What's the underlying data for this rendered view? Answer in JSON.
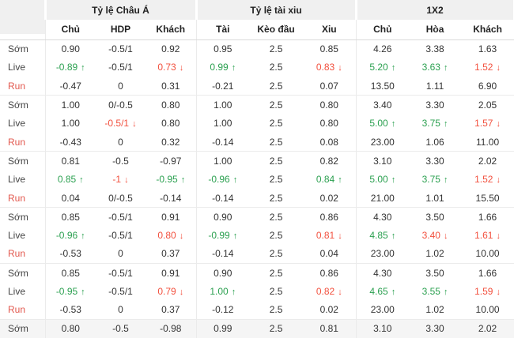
{
  "colors": {
    "green": "#2ba050",
    "red": "#f2503e",
    "run_label": "#e2574d",
    "header_bg": "#f0f0f0",
    "row_alt_bg": "#f5f5f5",
    "border": "#ebebeb"
  },
  "header": {
    "groups": [
      {
        "label": "Tỷ lệ Châu Á"
      },
      {
        "label": "Tỷ lệ tài xiu"
      },
      {
        "label": "1X2"
      }
    ],
    "columns": [
      "Chủ",
      "HDP",
      "Khách",
      "Tài",
      "Kèo đầu",
      "Xiu",
      "Chủ",
      "Hòa",
      "Khách"
    ]
  },
  "rows": [
    {
      "label": "Sớm",
      "kind": "som",
      "cells": [
        "0.90",
        "-0.5/1",
        "0.92",
        "0.95",
        "2.5",
        "0.85",
        "4.26",
        "3.38",
        "1.63"
      ]
    },
    {
      "label": "Live",
      "kind": "live",
      "cells": [
        {
          "v": "-0.89",
          "c": "g",
          "t": "u"
        },
        "-0.5/1",
        {
          "v": "0.73",
          "c": "r",
          "t": "d"
        },
        {
          "v": "0.99",
          "c": "g",
          "t": "u"
        },
        "2.5",
        {
          "v": "0.83",
          "c": "r",
          "t": "d"
        },
        {
          "v": "5.20",
          "c": "g",
          "t": "u"
        },
        {
          "v": "3.63",
          "c": "g",
          "t": "u"
        },
        {
          "v": "1.52",
          "c": "r",
          "t": "d"
        }
      ]
    },
    {
      "label": "Run",
      "kind": "run",
      "group_end": true,
      "cells": [
        "-0.47",
        "0",
        "0.31",
        "-0.21",
        "2.5",
        "0.07",
        "13.50",
        "1.11",
        "6.90"
      ]
    },
    {
      "label": "Sớm",
      "kind": "som",
      "cells": [
        "1.00",
        "0/-0.5",
        "0.80",
        "1.00",
        "2.5",
        "0.80",
        "3.40",
        "3.30",
        "2.05"
      ]
    },
    {
      "label": "Live",
      "kind": "live",
      "cells": [
        "1.00",
        {
          "v": "-0.5/1",
          "c": "r",
          "t": "d"
        },
        "0.80",
        "1.00",
        "2.5",
        "0.80",
        {
          "v": "5.00",
          "c": "g",
          "t": "u"
        },
        {
          "v": "3.75",
          "c": "g",
          "t": "u"
        },
        {
          "v": "1.57",
          "c": "r",
          "t": "d"
        }
      ]
    },
    {
      "label": "Run",
      "kind": "run",
      "group_end": true,
      "cells": [
        "-0.43",
        "0",
        "0.32",
        "-0.14",
        "2.5",
        "0.08",
        "23.00",
        "1.06",
        "11.00"
      ]
    },
    {
      "label": "Sớm",
      "kind": "som",
      "cells": [
        "0.81",
        "-0.5",
        "-0.97",
        "1.00",
        "2.5",
        "0.82",
        "3.10",
        "3.30",
        "2.02"
      ]
    },
    {
      "label": "Live",
      "kind": "live",
      "cells": [
        {
          "v": "0.85",
          "c": "g",
          "t": "u"
        },
        {
          "v": "-1",
          "c": "r",
          "t": "d"
        },
        {
          "v": "-0.95",
          "c": "g",
          "t": "u"
        },
        {
          "v": "-0.96",
          "c": "g",
          "t": "u"
        },
        "2.5",
        {
          "v": "0.84",
          "c": "g",
          "t": "u"
        },
        {
          "v": "5.00",
          "c": "g",
          "t": "u"
        },
        {
          "v": "3.75",
          "c": "g",
          "t": "u"
        },
        {
          "v": "1.52",
          "c": "r",
          "t": "d"
        }
      ]
    },
    {
      "label": "Run",
      "kind": "run",
      "group_end": true,
      "cells": [
        "0.04",
        "0/-0.5",
        "-0.14",
        "-0.14",
        "2.5",
        "0.02",
        "21.00",
        "1.01",
        "15.50"
      ]
    },
    {
      "label": "Sớm",
      "kind": "som",
      "cells": [
        "0.85",
        "-0.5/1",
        "0.91",
        "0.90",
        "2.5",
        "0.86",
        "4.30",
        "3.50",
        "1.66"
      ]
    },
    {
      "label": "Live",
      "kind": "live",
      "cells": [
        {
          "v": "-0.96",
          "c": "g",
          "t": "u"
        },
        "-0.5/1",
        {
          "v": "0.80",
          "c": "r",
          "t": "d"
        },
        {
          "v": "-0.99",
          "c": "g",
          "t": "u"
        },
        "2.5",
        {
          "v": "0.81",
          "c": "r",
          "t": "d"
        },
        {
          "v": "4.85",
          "c": "g",
          "t": "u"
        },
        {
          "v": "3.40",
          "c": "r",
          "t": "d"
        },
        {
          "v": "1.61",
          "c": "r",
          "t": "d"
        }
      ]
    },
    {
      "label": "Run",
      "kind": "run",
      "group_end": true,
      "cells": [
        "-0.53",
        "0",
        "0.37",
        "-0.14",
        "2.5",
        "0.04",
        "23.00",
        "1.02",
        "10.00"
      ]
    },
    {
      "label": "Sớm",
      "kind": "som",
      "cells": [
        "0.85",
        "-0.5/1",
        "0.91",
        "0.90",
        "2.5",
        "0.86",
        "4.30",
        "3.50",
        "1.66"
      ]
    },
    {
      "label": "Live",
      "kind": "live",
      "cells": [
        {
          "v": "-0.95",
          "c": "g",
          "t": "u"
        },
        "-0.5/1",
        {
          "v": "0.79",
          "c": "r",
          "t": "d"
        },
        {
          "v": "1.00",
          "c": "g",
          "t": "u"
        },
        "2.5",
        {
          "v": "0.82",
          "c": "r",
          "t": "d"
        },
        {
          "v": "4.65",
          "c": "g",
          "t": "u"
        },
        {
          "v": "3.55",
          "c": "g",
          "t": "u"
        },
        {
          "v": "1.59",
          "c": "r",
          "t": "d"
        }
      ]
    },
    {
      "label": "Run",
      "kind": "run",
      "group_end": true,
      "cells": [
        "-0.53",
        "0",
        "0.37",
        "-0.12",
        "2.5",
        "0.02",
        "23.00",
        "1.02",
        "10.00"
      ]
    },
    {
      "label": "Sớm",
      "kind": "som",
      "highlight": true,
      "cells": [
        "0.80",
        "-0.5",
        "-0.98",
        "0.99",
        "2.5",
        "0.81",
        "3.10",
        "3.30",
        "2.02"
      ]
    }
  ]
}
